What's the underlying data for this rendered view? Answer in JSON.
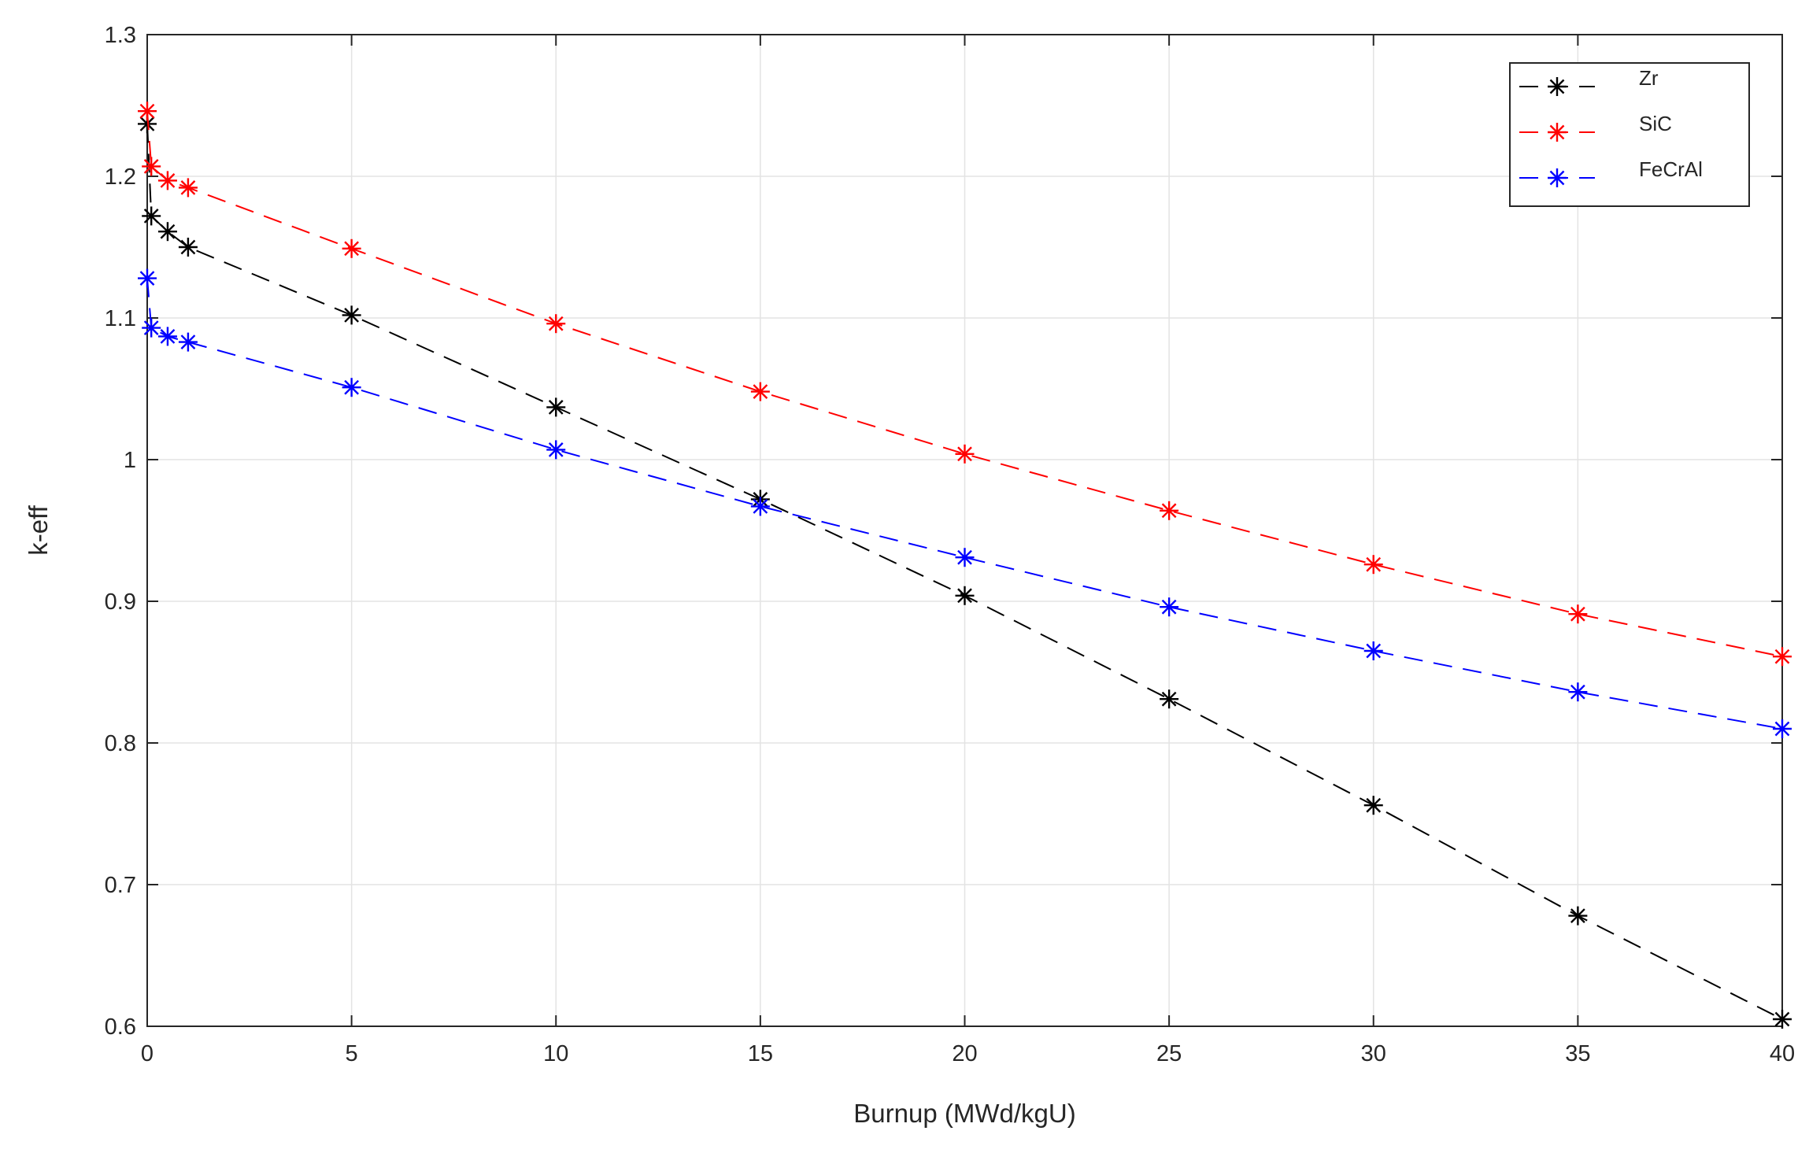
{
  "chart_data": {
    "type": "line",
    "xlabel": "Burnup (MWd/kgU)",
    "ylabel": "k-eff",
    "xlim": [
      0,
      40
    ],
    "ylim": [
      0.6,
      1.3
    ],
    "xticks": [
      0,
      5,
      10,
      15,
      20,
      25,
      30,
      35,
      40
    ],
    "xtick_labels": [
      "0",
      "5",
      "10",
      "15",
      "20",
      "25",
      "30",
      "35",
      "40"
    ],
    "yticks": [
      0.6,
      0.7,
      0.8,
      0.9,
      1.0,
      1.1,
      1.2,
      1.3
    ],
    "ytick_labels": [
      "0.6",
      "0.7",
      "0.8",
      "0.9",
      "1",
      "1.1",
      "1.2",
      "1.3"
    ],
    "grid": true,
    "legend_position": "top-right",
    "marker": "asterisk",
    "line_style": "dashed",
    "x": [
      0,
      0.1,
      0.5,
      1,
      5,
      10,
      15,
      20,
      25,
      30,
      35,
      40
    ],
    "series": [
      {
        "name": "Zr",
        "color": "#000000",
        "values": [
          1.237,
          1.172,
          1.161,
          1.15,
          1.102,
          1.037,
          0.972,
          0.904,
          0.831,
          0.756,
          0.678,
          0.605
        ]
      },
      {
        "name": "SiC",
        "color": "#ff0000",
        "values": [
          1.246,
          1.207,
          1.197,
          1.192,
          1.149,
          1.096,
          1.048,
          1.004,
          0.964,
          0.926,
          0.891,
          0.861
        ]
      },
      {
        "name": "FeCrAl",
        "color": "#0000ff",
        "values": [
          1.128,
          1.093,
          1.087,
          1.083,
          1.051,
          1.007,
          0.967,
          0.931,
          0.896,
          0.865,
          0.836,
          0.81
        ]
      }
    ]
  }
}
